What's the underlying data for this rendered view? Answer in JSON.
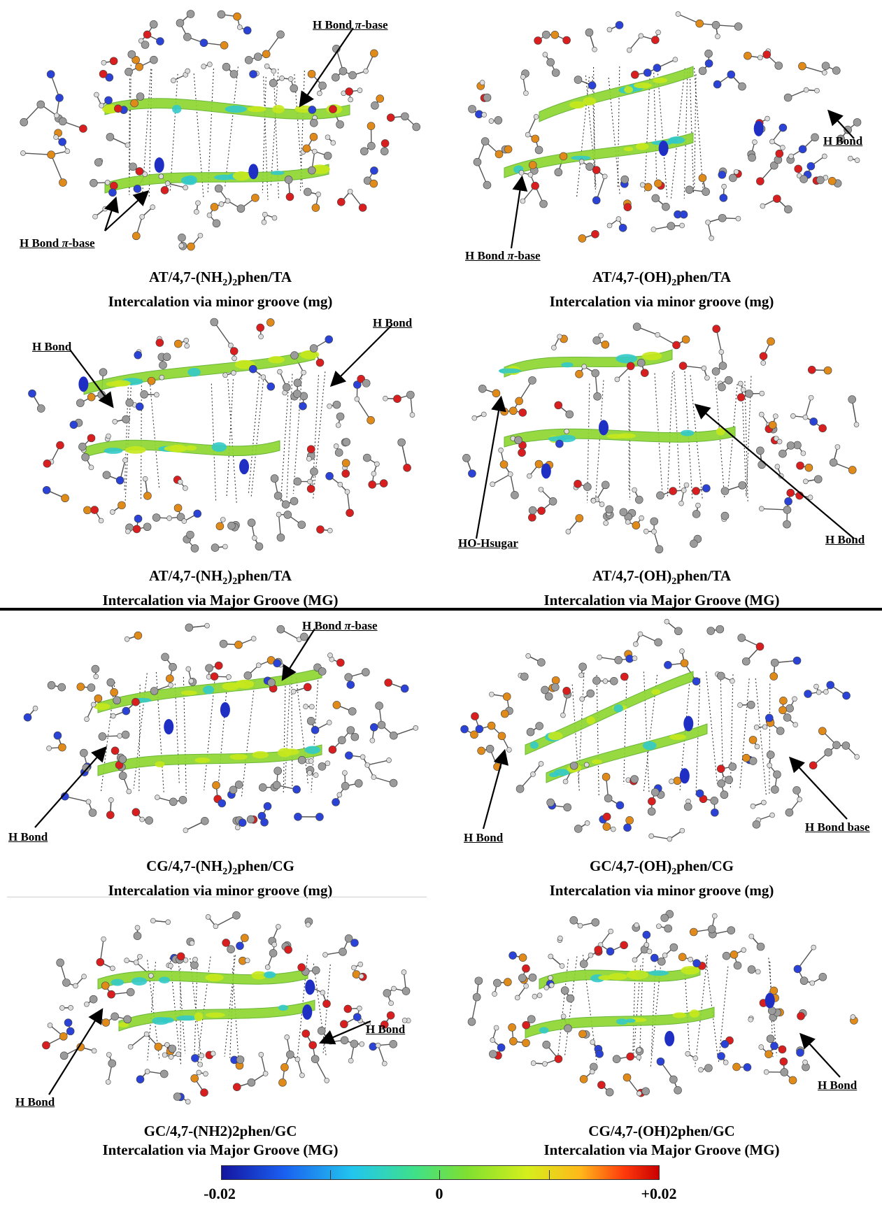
{
  "panels": [
    {
      "id": "p1",
      "line1_parts": [
        "AT/4,7-(NH",
        "2",
        ")",
        "2",
        "phen/TA"
      ],
      "line2": "Intercalation via minor groove (mg)",
      "annotations": [
        {
          "pre": "H Bond ",
          "italic": "π",
          "post": "-base"
        },
        {
          "pre": "H Bond ",
          "italic": "π",
          "post": "-base"
        }
      ]
    },
    {
      "id": "p2",
      "line1_parts": [
        "AT/4,7-(OH)",
        "2",
        "phen/TA"
      ],
      "line2": "Intercalation via minor groove (mg)",
      "annotations": [
        {
          "pre": "H Bond",
          "italic": "",
          "post": ""
        },
        {
          "pre": "H Bond ",
          "italic": "π",
          "post": "-base"
        }
      ]
    },
    {
      "id": "p3",
      "line1_parts": [
        "AT/4,7-(NH",
        "2",
        ")",
        "2",
        "phen/TA"
      ],
      "line2": "Intercalation via Major Groove (MG)",
      "annotations": [
        {
          "pre": "H Bond",
          "italic": "",
          "post": ""
        },
        {
          "pre": "H Bond",
          "italic": "",
          "post": ""
        }
      ]
    },
    {
      "id": "p4",
      "line1_parts": [
        "AT/4,7-(OH)",
        "2",
        "phen/TA"
      ],
      "line2": "Intercalation via Major Groove (MG)",
      "annotations": [
        {
          "pre": "HO-Hsugar",
          "italic": "",
          "post": ""
        },
        {
          "pre": "H Bond",
          "italic": "",
          "post": ""
        }
      ]
    },
    {
      "id": "p5",
      "line1_parts": [
        "CG/4,7-(NH",
        "2",
        ")",
        "2",
        "phen/CG"
      ],
      "line2": "Intercalation via minor groove (mg)",
      "annotations": [
        {
          "pre": "H Bond ",
          "italic": "π",
          "post": "-base"
        },
        {
          "pre": "H Bond",
          "italic": "",
          "post": ""
        }
      ]
    },
    {
      "id": "p6",
      "line1_parts": [
        "GC/4,7-(OH)",
        "2",
        "phen/CG"
      ],
      "line2": "Intercalation via minor groove (mg)",
      "annotations": [
        {
          "pre": "H Bond",
          "italic": "",
          "post": ""
        },
        {
          "pre": "H Bond base",
          "italic": "",
          "post": ""
        }
      ]
    },
    {
      "id": "p7",
      "line1_parts": [
        "GC/4,7-(NH2)2phen/GC"
      ],
      "line2": "Intercalation via Major Groove (MG)",
      "annotations": [
        {
          "pre": "H Bond",
          "italic": "",
          "post": ""
        },
        {
          "pre": "H Bond",
          "italic": "",
          "post": ""
        }
      ]
    },
    {
      "id": "p8",
      "line1_parts": [
        "CG/4,7-(OH)2phen/GC"
      ],
      "line2": "Intercalation via Major Groove (MG)",
      "annotations": [
        {
          "pre": "H Bond",
          "italic": "",
          "post": ""
        }
      ]
    }
  ],
  "colorbar": {
    "min_label": "-0.02",
    "mid_label": "0",
    "max_label": "+0.02",
    "colors": [
      "#1515a0",
      "#22c6ee",
      "#3ee08a",
      "#d6ee1c",
      "#c90000"
    ]
  }
}
